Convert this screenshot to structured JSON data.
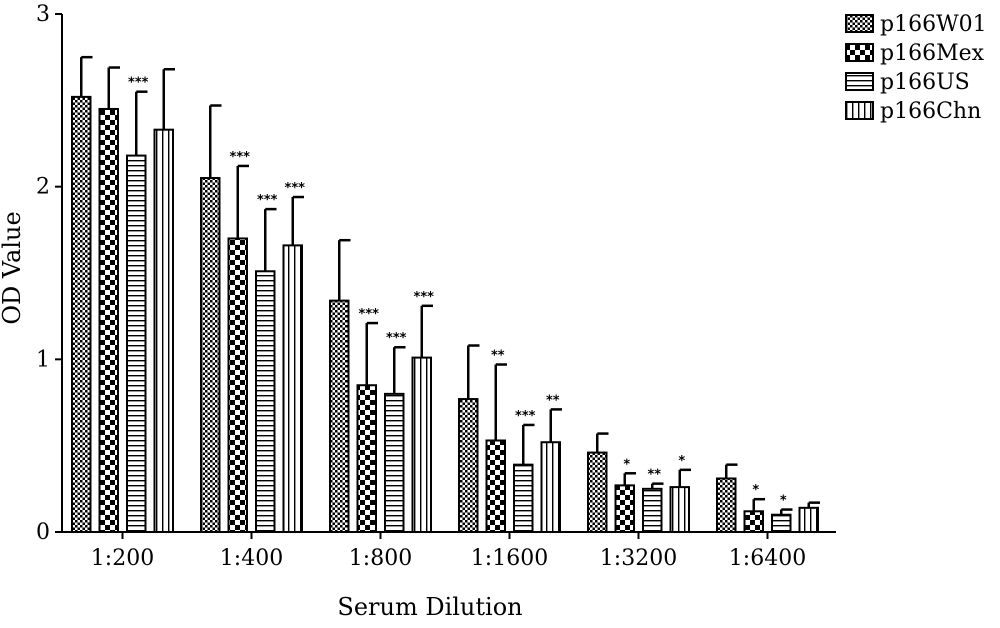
{
  "chart_data": {
    "type": "bar",
    "xlabel": "Serum Dilution",
    "ylabel": "OD Value",
    "ylim": [
      0,
      3
    ],
    "yticks": [
      "0",
      "1",
      "2",
      "3"
    ],
    "categories": [
      "1:200",
      "1:400",
      "1:800",
      "1:1600",
      "1:3200",
      "1:6400"
    ],
    "legend_position": "top-right",
    "series": [
      {
        "name": "p166W01",
        "pattern": "fine-checker",
        "values": [
          2.52,
          2.05,
          1.34,
          0.77,
          0.46,
          0.31
        ],
        "errors": [
          0.23,
          0.42,
          0.35,
          0.31,
          0.11,
          0.08
        ],
        "significance": [
          "",
          "",
          "",
          "",
          "",
          ""
        ]
      },
      {
        "name": "p166Mex",
        "pattern": "coarse-checker",
        "values": [
          2.45,
          1.7,
          0.85,
          0.53,
          0.27,
          0.12
        ],
        "errors": [
          0.24,
          0.42,
          0.36,
          0.44,
          0.07,
          0.07
        ],
        "significance": [
          "",
          "***",
          "***",
          "**",
          "*",
          "*"
        ]
      },
      {
        "name": "p166US",
        "pattern": "horizontal-lines",
        "values": [
          2.18,
          1.51,
          0.8,
          0.39,
          0.25,
          0.1
        ],
        "errors": [
          0.37,
          0.36,
          0.27,
          0.23,
          0.03,
          0.03
        ],
        "significance": [
          "***",
          "***",
          "***",
          "***",
          "**",
          "*"
        ]
      },
      {
        "name": "p166Chn",
        "pattern": "vertical-lines",
        "values": [
          2.33,
          1.66,
          1.01,
          0.52,
          0.26,
          0.14
        ],
        "errors": [
          0.35,
          0.28,
          0.3,
          0.19,
          0.1,
          0.03
        ],
        "significance": [
          "",
          "***",
          "***",
          "**",
          "*",
          ""
        ]
      }
    ]
  }
}
